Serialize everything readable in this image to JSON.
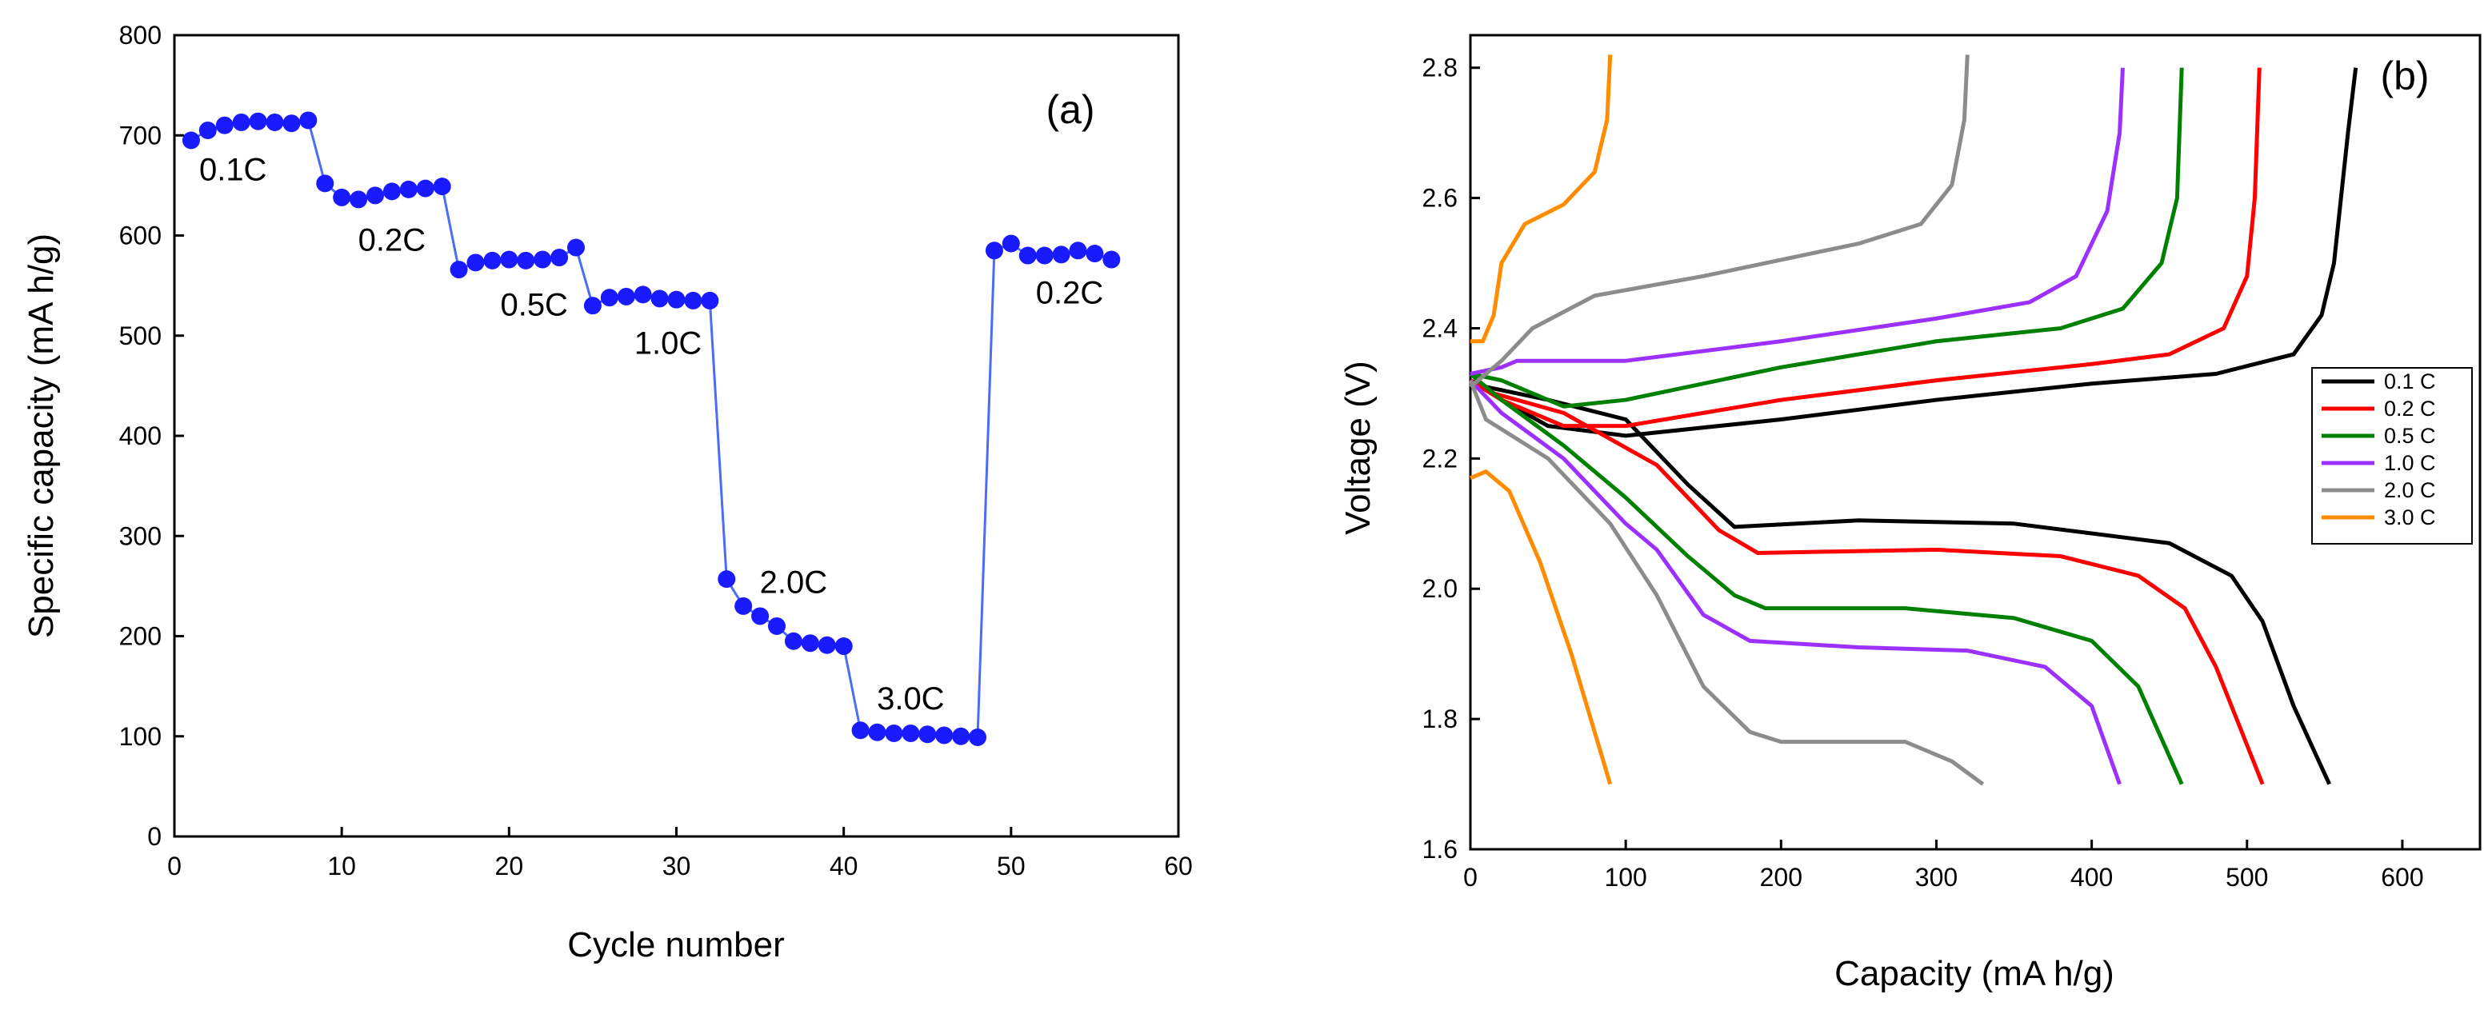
{
  "chart_data": [
    {
      "panel_label": "(a)",
      "type": "line",
      "marker": "circle",
      "color": "#1a1aff",
      "line_color": "#4a6cf7",
      "xlabel": "Cycle number",
      "ylabel": "Specific capacity (mA h/g)",
      "xlim": [
        0,
        60
      ],
      "ylim": [
        0,
        800
      ],
      "xticks": [
        0,
        10,
        20,
        30,
        40,
        50,
        60
      ],
      "yticks": [
        0,
        100,
        200,
        300,
        400,
        500,
        600,
        700,
        800
      ],
      "x": [
        1,
        2,
        3,
        4,
        5,
        6,
        7,
        8,
        9,
        10,
        11,
        12,
        13,
        14,
        15,
        16,
        17,
        18,
        19,
        20,
        21,
        22,
        23,
        24,
        25,
        26,
        27,
        28,
        29,
        30,
        31,
        32,
        33,
        34,
        35,
        36,
        37,
        38,
        39,
        40,
        41,
        42,
        43,
        44,
        45,
        46,
        47,
        48,
        49,
        50,
        51,
        52,
        53,
        54,
        55,
        56
      ],
      "y": [
        695,
        705,
        710,
        713,
        714,
        713,
        712,
        715,
        652,
        638,
        636,
        640,
        644,
        646,
        647,
        649,
        566,
        573,
        575,
        576,
        575,
        576,
        578,
        588,
        530,
        538,
        539,
        541,
        537,
        536,
        535,
        535,
        257,
        230,
        220,
        210,
        195,
        193,
        191,
        190,
        106,
        104,
        103,
        103,
        102,
        101,
        100,
        99,
        585,
        592,
        580,
        580,
        581,
        585,
        582,
        576
      ],
      "annotations": [
        {
          "text": "0.1C",
          "x": 3.5,
          "y": 655
        },
        {
          "text": "0.2C",
          "x": 13,
          "y": 585
        },
        {
          "text": "0.5C",
          "x": 21.5,
          "y": 520
        },
        {
          "text": "1.0C",
          "x": 29.5,
          "y": 482
        },
        {
          "text": "2.0C",
          "x": 37,
          "y": 243
        },
        {
          "text": "3.0C",
          "x": 44,
          "y": 127
        },
        {
          "text": "0.2C",
          "x": 53.5,
          "y": 532
        }
      ]
    },
    {
      "panel_label": "(b)",
      "type": "line",
      "xlabel": "Capacity (mA h/g)",
      "ylabel": "Voltage (V)",
      "xlim": [
        0,
        650
      ],
      "ylim": [
        1.6,
        2.85
      ],
      "xticks": [
        0,
        100,
        200,
        300,
        400,
        500,
        600
      ],
      "yticks": [
        1.6,
        1.8,
        2.0,
        2.2,
        2.4,
        2.6,
        2.8
      ],
      "ytick_labels": [
        "1.6",
        "1.8",
        "2.0",
        "2.2",
        "2.4",
        "2.6",
        "2.8"
      ],
      "legend": [
        "0.1 C",
        "0.2 C",
        "0.5 C",
        "1.0 C",
        "2.0 C",
        "3.0 C"
      ],
      "series": [
        {
          "name": "0.1 C",
          "color": "#000000",
          "discharge": [
            [
              0,
              2.32
            ],
            [
              10,
              2.31
            ],
            [
              50,
              2.29
            ],
            [
              100,
              2.26
            ],
            [
              140,
              2.16
            ],
            [
              170,
              2.095
            ],
            [
              250,
              2.105
            ],
            [
              350,
              2.1
            ],
            [
              450,
              2.07
            ],
            [
              490,
              2.02
            ],
            [
              510,
              1.95
            ],
            [
              530,
              1.82
            ],
            [
              553,
              1.7
            ]
          ],
          "charge": [
            [
              0,
              2.32
            ],
            [
              20,
              2.29
            ],
            [
              50,
              2.25
            ],
            [
              100,
              2.235
            ],
            [
              200,
              2.26
            ],
            [
              300,
              2.29
            ],
            [
              400,
              2.315
            ],
            [
              480,
              2.33
            ],
            [
              530,
              2.36
            ],
            [
              548,
              2.42
            ],
            [
              556,
              2.5
            ],
            [
              565,
              2.7
            ],
            [
              570,
              2.8
            ]
          ]
        },
        {
          "name": "0.2 C",
          "color": "#ff0000",
          "discharge": [
            [
              0,
              2.32
            ],
            [
              15,
              2.3
            ],
            [
              60,
              2.27
            ],
            [
              120,
              2.19
            ],
            [
              160,
              2.09
            ],
            [
              185,
              2.055
            ],
            [
              300,
              2.06
            ],
            [
              380,
              2.05
            ],
            [
              430,
              2.02
            ],
            [
              460,
              1.97
            ],
            [
              480,
              1.88
            ],
            [
              495,
              1.79
            ],
            [
              510,
              1.7
            ]
          ],
          "charge": [
            [
              0,
              2.32
            ],
            [
              20,
              2.29
            ],
            [
              60,
              2.25
            ],
            [
              100,
              2.25
            ],
            [
              200,
              2.29
            ],
            [
              300,
              2.32
            ],
            [
              400,
              2.345
            ],
            [
              450,
              2.36
            ],
            [
              485,
              2.4
            ],
            [
              500,
              2.48
            ],
            [
              505,
              2.6
            ],
            [
              508,
              2.8
            ]
          ]
        },
        {
          "name": "0.5 C",
          "color": "#008000",
          "discharge": [
            [
              0,
              2.33
            ],
            [
              20,
              2.29
            ],
            [
              60,
              2.22
            ],
            [
              100,
              2.14
            ],
            [
              140,
              2.05
            ],
            [
              170,
              1.99
            ],
            [
              190,
              1.97
            ],
            [
              280,
              1.97
            ],
            [
              350,
              1.955
            ],
            [
              400,
              1.92
            ],
            [
              430,
              1.85
            ],
            [
              458,
              1.7
            ]
          ],
          "charge": [
            [
              0,
              2.33
            ],
            [
              20,
              2.32
            ],
            [
              60,
              2.28
            ],
            [
              100,
              2.29
            ],
            [
              200,
              2.34
            ],
            [
              300,
              2.38
            ],
            [
              380,
              2.4
            ],
            [
              420,
              2.43
            ],
            [
              445,
              2.5
            ],
            [
              455,
              2.6
            ],
            [
              458,
              2.8
            ]
          ]
        },
        {
          "name": "1.0 C",
          "color": "#9b30ff",
          "discharge": [
            [
              0,
              2.32
            ],
            [
              20,
              2.27
            ],
            [
              60,
              2.2
            ],
            [
              100,
              2.1
            ],
            [
              120,
              2.06
            ],
            [
              150,
              1.96
            ],
            [
              180,
              1.92
            ],
            [
              250,
              1.91
            ],
            [
              320,
              1.905
            ],
            [
              370,
              1.88
            ],
            [
              400,
              1.82
            ],
            [
              418,
              1.7
            ]
          ],
          "charge": [
            [
              0,
              2.33
            ],
            [
              20,
              2.34
            ],
            [
              30,
              2.35
            ],
            [
              100,
              2.35
            ],
            [
              200,
              2.38
            ],
            [
              300,
              2.415
            ],
            [
              360,
              2.44
            ],
            [
              390,
              2.48
            ],
            [
              410,
              2.58
            ],
            [
              418,
              2.7
            ],
            [
              420,
              2.8
            ]
          ]
        },
        {
          "name": "2.0 C",
          "color": "#8c8c8c",
          "discharge": [
            [
              0,
              2.32
            ],
            [
              10,
              2.26
            ],
            [
              50,
              2.2
            ],
            [
              90,
              2.1
            ],
            [
              120,
              1.99
            ],
            [
              150,
              1.85
            ],
            [
              180,
              1.78
            ],
            [
              200,
              1.765
            ],
            [
              280,
              1.765
            ],
            [
              310,
              1.735
            ],
            [
              330,
              1.7
            ]
          ],
          "charge": [
            [
              0,
              2.31
            ],
            [
              20,
              2.35
            ],
            [
              40,
              2.4
            ],
            [
              80,
              2.45
            ],
            [
              150,
              2.48
            ],
            [
              250,
              2.53
            ],
            [
              290,
              2.56
            ],
            [
              310,
              2.62
            ],
            [
              318,
              2.72
            ],
            [
              320,
              2.82
            ]
          ]
        },
        {
          "name": "3.0 C",
          "color": "#ff8c00",
          "discharge": [
            [
              0,
              2.17
            ],
            [
              10,
              2.18
            ],
            [
              25,
              2.15
            ],
            [
              45,
              2.04
            ],
            [
              65,
              1.9
            ],
            [
              80,
              1.78
            ],
            [
              90,
              1.7
            ]
          ],
          "charge": [
            [
              0,
              2.38
            ],
            [
              8,
              2.38
            ],
            [
              15,
              2.42
            ],
            [
              20,
              2.5
            ],
            [
              35,
              2.56
            ],
            [
              60,
              2.59
            ],
            [
              80,
              2.64
            ],
            [
              88,
              2.72
            ],
            [
              90,
              2.82
            ]
          ]
        }
      ]
    }
  ]
}
